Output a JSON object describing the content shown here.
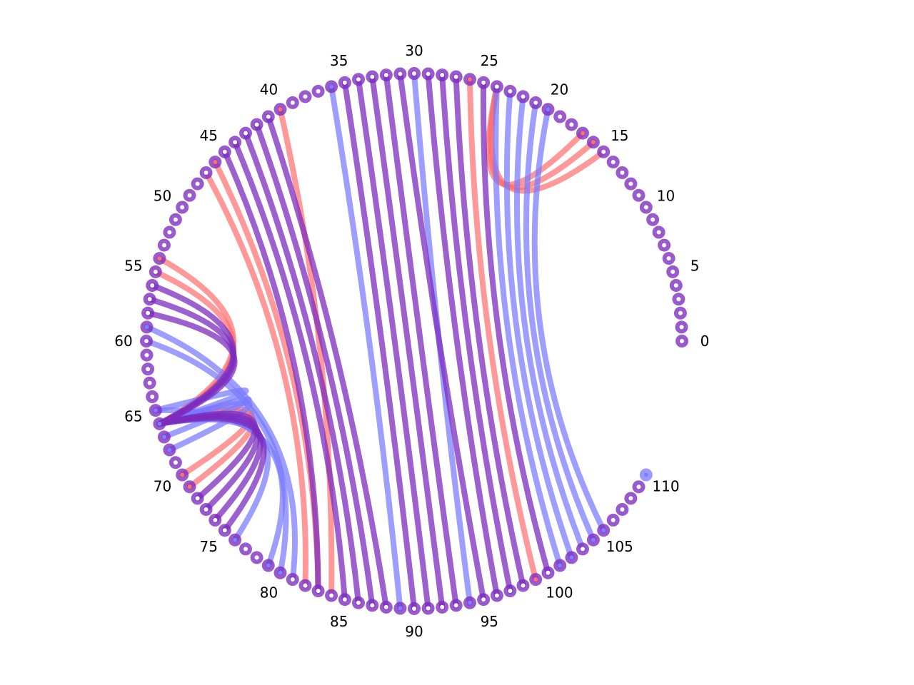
{
  "diagram": {
    "type": "circular-arc-diagram",
    "node_count": 111,
    "tick_labels": [
      "0",
      "5",
      "10",
      "15",
      "20",
      "25",
      "30",
      "35",
      "40",
      "45",
      "50",
      "55",
      "60",
      "65",
      "70",
      "75",
      "80",
      "85",
      "90",
      "95",
      "100",
      "105",
      "110"
    ],
    "node_colors": {
      "purple": "#7b2cbf",
      "blue": "#8a8aff",
      "red": "#f08080"
    },
    "highlighted_nodes": {
      "blue": [
        20,
        36,
        59,
        65,
        66,
        67,
        68,
        76,
        79,
        80,
        89,
        94,
        101,
        102,
        104,
        105,
        110
      ],
      "red": [
        16,
        17,
        26,
        40,
        46,
        54,
        70,
        71,
        99
      ]
    },
    "links": [
      {
        "source": 15,
        "target": 24,
        "color": "red"
      },
      {
        "source": 16,
        "target": 24,
        "color": "red"
      },
      {
        "source": 17,
        "target": 24,
        "color": "red"
      },
      {
        "source": 26,
        "target": 99,
        "color": "red"
      },
      {
        "source": 40,
        "target": 84,
        "color": "red"
      },
      {
        "source": 46,
        "target": 83,
        "color": "red"
      },
      {
        "source": 47,
        "target": 82,
        "color": "red"
      },
      {
        "source": 54,
        "target": 66,
        "color": "red"
      },
      {
        "source": 55,
        "target": 66,
        "color": "red"
      },
      {
        "source": 66,
        "target": 70,
        "color": "red"
      },
      {
        "source": 66,
        "target": 71,
        "color": "red"
      },
      {
        "source": 20,
        "target": 105,
        "color": "blue"
      },
      {
        "source": 21,
        "target": 104,
        "color": "blue"
      },
      {
        "source": 22,
        "target": 103,
        "color": "blue"
      },
      {
        "source": 23,
        "target": 102,
        "color": "blue"
      },
      {
        "source": 24,
        "target": 101,
        "color": "blue"
      },
      {
        "source": 36,
        "target": 89,
        "color": "blue"
      },
      {
        "source": 30,
        "target": 94,
        "color": "blue"
      },
      {
        "source": 59,
        "target": 81,
        "color": "blue"
      },
      {
        "source": 60,
        "target": 80,
        "color": "blue"
      },
      {
        "source": 65,
        "target": 79,
        "color": "blue"
      },
      {
        "source": 66,
        "target": 76,
        "color": "blue"
      },
      {
        "source": 66,
        "target": 65,
        "color": "blue"
      },
      {
        "source": 66,
        "target": 67,
        "color": "blue"
      },
      {
        "source": 66,
        "target": 68,
        "color": "blue"
      },
      {
        "source": 25,
        "target": 100,
        "color": "purple"
      },
      {
        "source": 27,
        "target": 98,
        "color": "purple"
      },
      {
        "source": 28,
        "target": 97,
        "color": "purple"
      },
      {
        "source": 29,
        "target": 96,
        "color": "purple"
      },
      {
        "source": 31,
        "target": 95,
        "color": "purple"
      },
      {
        "source": 32,
        "target": 93,
        "color": "purple"
      },
      {
        "source": 33,
        "target": 92,
        "color": "purple"
      },
      {
        "source": 34,
        "target": 91,
        "color": "purple"
      },
      {
        "source": 35,
        "target": 90,
        "color": "purple"
      },
      {
        "source": 41,
        "target": 88,
        "color": "purple"
      },
      {
        "source": 42,
        "target": 87,
        "color": "purple"
      },
      {
        "source": 43,
        "target": 86,
        "color": "purple"
      },
      {
        "source": 44,
        "target": 85,
        "color": "purple"
      },
      {
        "source": 45,
        "target": 83,
        "color": "purple"
      },
      {
        "source": 56,
        "target": 66,
        "color": "purple"
      },
      {
        "source": 57,
        "target": 66,
        "color": "purple"
      },
      {
        "source": 58,
        "target": 66,
        "color": "purple"
      },
      {
        "source": 66,
        "target": 72,
        "color": "purple"
      },
      {
        "source": 66,
        "target": 73,
        "color": "purple"
      },
      {
        "source": 66,
        "target": 74,
        "color": "purple"
      },
      {
        "source": 66,
        "target": 75,
        "color": "purple"
      }
    ]
  }
}
